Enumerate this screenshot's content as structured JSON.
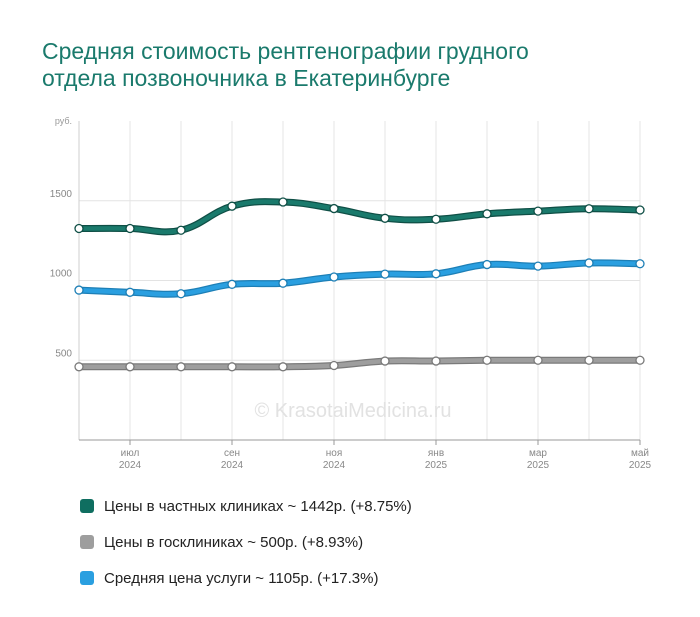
{
  "title_lines": [
    "Средняя стоимость рентгенографии грудного",
    "отдела позвоночника в Екатеринбурге"
  ],
  "watermark": "© KrasotaiMedicina.ru",
  "chart_data": {
    "type": "line",
    "title": "Средняя стоимость рентгенографии грудного отдела позвоночника в Екатеринбурге",
    "ylabel": "руб.",
    "ylim": [
      0,
      2000
    ],
    "yticks": [
      500,
      1000,
      1500
    ],
    "x": [
      "2024-06",
      "2024-07",
      "2024-08",
      "2024-09",
      "2024-10",
      "2024-11",
      "2024-12",
      "2025-01",
      "2025-02",
      "2025-03",
      "2025-04",
      "2025-05"
    ],
    "x_tick_labels": [
      {
        "index": 1,
        "month": "июл",
        "year": "2024"
      },
      {
        "index": 3,
        "month": "сен",
        "year": "2024"
      },
      {
        "index": 5,
        "month": "ноя",
        "year": "2024"
      },
      {
        "index": 7,
        "month": "янв",
        "year": "2025"
      },
      {
        "index": 9,
        "month": "мар",
        "year": "2025"
      },
      {
        "index": 11,
        "month": "май",
        "year": "2025"
      }
    ],
    "grid": true,
    "series": [
      {
        "name": "Цены в частных клиниках",
        "color": "#1a7a6c",
        "outline": "#0f4f46",
        "values": [
          1326,
          1326,
          1315,
          1466,
          1492,
          1451,
          1390,
          1384,
          1418,
          1435,
          1450,
          1442
        ]
      },
      {
        "name": "Цены в госклиниках",
        "color": "#9e9e9e",
        "outline": "#7a7a7a",
        "values": [
          459,
          459,
          459,
          459,
          459,
          467,
          495,
          495,
          500,
          500,
          500,
          500
        ]
      },
      {
        "name": "Средняя цена услуги",
        "color": "#2a9fe0",
        "outline": "#1d7fb6",
        "values": [
          940,
          926,
          917,
          976,
          983,
          1022,
          1040,
          1042,
          1100,
          1090,
          1110,
          1105
        ]
      }
    ]
  },
  "legend": [
    {
      "label": "Цены в частных клиниках ~ 1442р. (+8.75%)",
      "color": "#0f6e60"
    },
    {
      "label": "Цены в госклиниках ~ 500р. (+8.93%)",
      "color": "#9e9e9e"
    },
    {
      "label": "Средняя цена услуги ~ 1105р. (+17.3%)",
      "color": "#2a9fe0"
    }
  ]
}
